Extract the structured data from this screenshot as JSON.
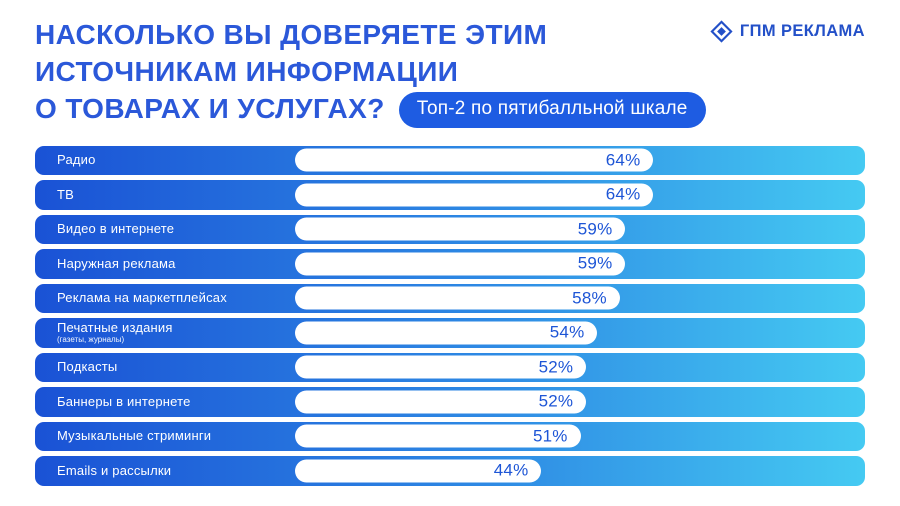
{
  "title": {
    "line1": "НАСКОЛЬКО ВЫ ДОВЕРЯЕТЕ ЭТИМ",
    "line2": "ИСТОЧНИКАМ ИНФОРМАЦИИ",
    "line3": "О ТОВАРАХ И УСЛУГАХ?",
    "badge": "Топ-2 по пятибалльной шкале"
  },
  "logo": {
    "text": "ГПМ РЕКЛАМА"
  },
  "colors": {
    "title_blue": "#2b58d9",
    "badge_blue": "#1e5ce2",
    "bar_gradient_start": "#1a52d5",
    "bar_gradient_end": "#45caf2",
    "value_text_blue": "#1d55d6"
  },
  "chart_data": {
    "type": "bar",
    "orientation": "horizontal",
    "title": "НАСКОЛЬКО ВЫ ДОВЕРЯЕТЕ ЭТИМ ИСТОЧНИКАМ ИНФОРМАЦИИ О ТОВАРАХ И УСЛУГАХ?",
    "subtitle": "Топ-2 по пятибалльной шкале",
    "unit": "%",
    "xlim": [
      0,
      100
    ],
    "grid": false,
    "legend": false,
    "categories": [
      "Радио",
      "ТВ",
      "Видео в интернете",
      "Наружная реклама",
      "Реклама на маркетплейсах",
      "Печатные издания",
      "Подкасты",
      "Баннеры в интернете",
      "Музыкальные стриминги",
      "Emails и рассылки"
    ],
    "values": [
      64,
      64,
      59,
      59,
      58,
      54,
      52,
      52,
      51,
      44
    ],
    "rows": [
      {
        "label": "Радио",
        "sublabel": "",
        "value": 64,
        "display": "64%"
      },
      {
        "label": "ТВ",
        "sublabel": "",
        "value": 64,
        "display": "64%"
      },
      {
        "label": "Видео в интернете",
        "sublabel": "",
        "value": 59,
        "display": "59%"
      },
      {
        "label": "Наружная реклама",
        "sublabel": "",
        "value": 59,
        "display": "59%"
      },
      {
        "label": "Реклама на маркетплейсах",
        "sublabel": "",
        "value": 58,
        "display": "58%"
      },
      {
        "label": "Печатные издания",
        "sublabel": "(газеты, журналы)",
        "value": 54,
        "display": "54%"
      },
      {
        "label": "Подкасты",
        "sublabel": "",
        "value": 52,
        "display": "52%"
      },
      {
        "label": "Баннеры в интернете",
        "sublabel": "",
        "value": 52,
        "display": "52%"
      },
      {
        "label": "Музыкальные стриминги",
        "sublabel": "",
        "value": 51,
        "display": "51%"
      },
      {
        "label": "Emails и рассылки",
        "sublabel": "",
        "value": 44,
        "display": "44%"
      }
    ]
  }
}
